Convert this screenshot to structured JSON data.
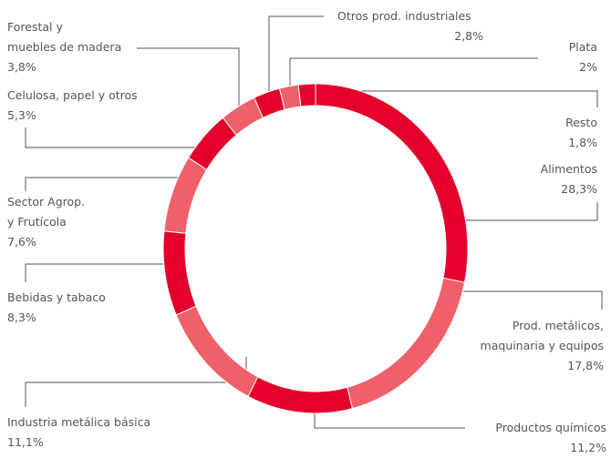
{
  "chart_data": {
    "type": "donut",
    "categories": [
      "Alimentos",
      "Prod. metálicos,\nmaquinaria y equipos",
      "Productos químicos",
      "Industria metálica básica",
      "Bebidas y tabaco",
      "Sector Agrop.\ny Frutícola",
      "Celulosa, papel y otros",
      "Forestal y\nmuebles de madera",
      "Otros prod. industriales",
      "Plata",
      "Resto"
    ],
    "values": [
      28.3,
      17.8,
      11.2,
      11.1,
      8.3,
      7.6,
      5.3,
      3.8,
      2.8,
      2,
      1.8
    ],
    "value_labels": [
      "28,3%",
      "17,8%",
      "11,2%",
      "11,1%",
      "8,3%",
      "7,6%",
      "5,3%",
      "3,8%",
      "2,8%",
      "2%",
      "1,8%"
    ],
    "colors": [
      "#e4002b",
      "#f0606a",
      "#e4002b",
      "#f0606a",
      "#e4002b",
      "#f0606a",
      "#e4002b",
      "#f0606a",
      "#e4002b",
      "#f0606a",
      "#e4002b"
    ]
  }
}
